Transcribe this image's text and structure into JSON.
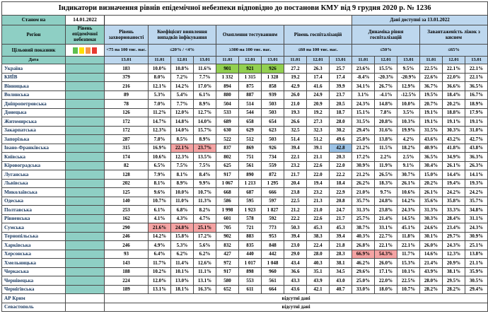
{
  "title": "Індикатори визначення рівнів епідемічної небезпеки відповідно до постанови КМУ від 9 грудня 2020 р. № 1236",
  "status": {
    "as_of_label": "Станом на",
    "as_of_date": "14.01.2022",
    "available_label": "Дані доступні за 13.01.2022"
  },
  "header": {
    "region": "Регіон",
    "epid_level": "Рівень епідемічної небезпеки",
    "target_label": "Цільовий показник",
    "date_label": "Дата",
    "morb_date": "13.01",
    "dates": [
      "11.01",
      "12.01",
      "13.01"
    ],
    "groups": [
      {
        "label": "Рівень захворюваності",
        "threshold": "<75 на 100 тис. нас."
      },
      {
        "label": "Коефіцієнт виявлення випадків інфікування",
        "threshold": "≤20% / <4%"
      },
      {
        "label": "Охоплення тестуванням",
        "threshold": "≥300 на 100 тис. нас."
      },
      {
        "label": "Рівень госпіталізацій",
        "threshold": "≤60 на 100 тис. нас."
      },
      {
        "label": "Динаміка рівня госпіталізацій",
        "threshold": "≤50%"
      },
      {
        "label": "Завантаженість ліжок з киснем",
        "threshold": "≤65%"
      }
    ],
    "target_colors": [
      "#5fbf50",
      "#ffdf00",
      "#f79646",
      "#e83a30"
    ]
  },
  "colors": {
    "header_teal": "#8ecfc4",
    "header_blue": "#bdd7ee",
    "highlight_green": "#92d050",
    "highlight_red": "#f4a3a3",
    "highlight_blue": "#9dc3e6"
  },
  "no_data_text": "відсутні дані",
  "rows": [
    {
      "region": "Україна",
      "morb": "183",
      "coef": [
        "10.0%",
        "10.8%",
        "11.6%"
      ],
      "test": [
        "901",
        "921",
        "926"
      ],
      "hosp": [
        "27.2",
        "26.3",
        "25.7"
      ],
      "dyn": [
        "23.6%",
        "15.5%",
        "9.5%"
      ],
      "beds": [
        "22.5%",
        "22.1%",
        "22.1%"
      ],
      "hl": {
        "test": [
          "green",
          "green",
          "green"
        ]
      }
    },
    {
      "region": "КИЇВ",
      "morb": "379",
      "coef": [
        "8.0%",
        "7.2%",
        "7.7%"
      ],
      "test": [
        "1 332",
        "1 315",
        "1 328"
      ],
      "hosp": [
        "19.2",
        "17.4",
        "17.4"
      ],
      "dyn": [
        "-8.4%",
        "-20.3%",
        "-20.9%"
      ],
      "beds": [
        "22.6%",
        "22.0%",
        "22.1%"
      ]
    },
    {
      "region": "Вінницька",
      "morb": "216",
      "coef": [
        "12.1%",
        "14.2%",
        "17.0%"
      ],
      "test": [
        "894",
        "875",
        "858"
      ],
      "hosp": [
        "42.9",
        "41.6",
        "39.9"
      ],
      "dyn": [
        "34.1%",
        "26.7%",
        "12.9%"
      ],
      "beds": [
        "36.7%",
        "36.6%",
        "36.5%"
      ]
    },
    {
      "region": "Волинська",
      "morb": "89",
      "coef": [
        "5.3%",
        "5.4%",
        "6.1%"
      ],
      "test": [
        "880",
        "887",
        "939"
      ],
      "hosp": [
        "26.0",
        "24.9",
        "23.7"
      ],
      "dyn": [
        "3.1%",
        "-4.1%",
        "-12.5%"
      ],
      "beds": [
        "19.5%",
        "18.4%",
        "16.7%"
      ]
    },
    {
      "region": "Дніпропетровська",
      "morb": "78",
      "coef": [
        "7.0%",
        "7.7%",
        "8.9%"
      ],
      "test": [
        "504",
        "514",
        "503"
      ],
      "hosp": [
        "21.0",
        "20.9",
        "20.5"
      ],
      "dyn": [
        "24.3%",
        "14.8%",
        "10.0%"
      ],
      "beds": [
        "20.7%",
        "20.2%",
        "18.9%"
      ]
    },
    {
      "region": "Донецька",
      "morb": "126",
      "coef": [
        "11.2%",
        "12.0%",
        "12.7%"
      ],
      "test": [
        "533",
        "544",
        "503"
      ],
      "hosp": [
        "19.3",
        "19.2",
        "18.7"
      ],
      "dyn": [
        "15.1%",
        "7.8%",
        "3.5%"
      ],
      "beds": [
        "19.1%",
        "18.8%",
        "17.9%"
      ]
    },
    {
      "region": "Житомирська",
      "morb": "172",
      "coef": [
        "14.7%",
        "14.8%",
        "14.0%"
      ],
      "test": [
        "689",
        "658",
        "654"
      ],
      "hosp": [
        "26.6",
        "27.3",
        "28.0"
      ],
      "dyn": [
        "31.5%",
        "20.8%",
        "10.3%"
      ],
      "beds": [
        "19.1%",
        "19.1%",
        "19.1%"
      ]
    },
    {
      "region": "Закарпатська",
      "morb": "172",
      "coef": [
        "12.3%",
        "14.0%",
        "15.7%"
      ],
      "test": [
        "630",
        "629",
        "623"
      ],
      "hosp": [
        "32.5",
        "32.3",
        "30.2"
      ],
      "dyn": [
        "29.4%",
        "31.6%",
        "19.9%"
      ],
      "beds": [
        "31.5%",
        "30.3%",
        "31.0%"
      ]
    },
    {
      "region": "Запорізька",
      "morb": "287",
      "coef": [
        "7.8%",
        "8.5%",
        "8.9%"
      ],
      "test": [
        "522",
        "512",
        "503"
      ],
      "hosp": [
        "51.4",
        "51.2",
        "49.6"
      ],
      "dyn": [
        "25.0%",
        "13.8%",
        "4.2%"
      ],
      "beds": [
        "43.6%",
        "43.2%",
        "42.7%"
      ]
    },
    {
      "region": "Івано-Франківська",
      "morb": "315",
      "coef": [
        "16.9%",
        "22.1%",
        "23.7%"
      ],
      "test": [
        "837",
        "869",
        "926"
      ],
      "hosp": [
        "39.4",
        "39.1",
        "42.8"
      ],
      "dyn": [
        "21.2%",
        "11.5%",
        "18.2%"
      ],
      "beds": [
        "40.9%",
        "41.8%",
        "43.8%"
      ],
      "hl": {
        "coef": [
          null,
          "red",
          "red"
        ],
        "hosp": [
          null,
          null,
          "blue"
        ]
      }
    },
    {
      "region": "Київська",
      "morb": "174",
      "coef": [
        "10.6%",
        "12.3%",
        "13.5%"
      ],
      "test": [
        "802",
        "751",
        "734"
      ],
      "hosp": [
        "22.1",
        "21.1",
        "20.3"
      ],
      "dyn": [
        "17.2%",
        "2.2%",
        "2.5%"
      ],
      "beds": [
        "36.5%",
        "34.9%",
        "36.3%"
      ]
    },
    {
      "region": "Кіровоградська",
      "morb": "82",
      "coef": [
        "6.5%",
        "7.5%",
        "7.5%"
      ],
      "test": [
        "625",
        "561",
        "559"
      ],
      "hosp": [
        "23.2",
        "22.6",
        "22.0"
      ],
      "dyn": [
        "30.9%",
        "11.9%",
        "9.1%"
      ],
      "beds": [
        "30.4%",
        "26.1%",
        "26.3%"
      ]
    },
    {
      "region": "Луганська",
      "morb": "128",
      "coef": [
        "7.9%",
        "8.1%",
        "8.4%"
      ],
      "test": [
        "917",
        "890",
        "872"
      ],
      "hosp": [
        "21.7",
        "22.0",
        "22.2"
      ],
      "dyn": [
        "21.2%",
        "26.5%",
        "30.7%"
      ],
      "beds": [
        "15.0%",
        "14.4%",
        "14.1%"
      ]
    },
    {
      "region": "Львівська",
      "morb": "202",
      "coef": [
        "8.1%",
        "8.9%",
        "9.9%"
      ],
      "test": [
        "1 067",
        "1 213",
        "1 295"
      ],
      "hosp": [
        "20.4",
        "19.4",
        "18.4"
      ],
      "dyn": [
        "26.2%",
        "18.3%",
        "26.1%"
      ],
      "beds": [
        "20.2%",
        "19.4%",
        "19.3%"
      ]
    },
    {
      "region": "Миколаївська",
      "morb": "125",
      "coef": [
        "9.6%",
        "10.0%",
        "10.7%"
      ],
      "test": [
        "668",
        "687",
        "666"
      ],
      "hosp": [
        "23.8",
        "23.2",
        "22.9"
      ],
      "dyn": [
        "21.0%",
        "9.7%",
        "10.6%"
      ],
      "beds": [
        "26.1%",
        "24.2%",
        "24.2%"
      ]
    },
    {
      "region": "Одеська",
      "morb": "140",
      "coef": [
        "10.7%",
        "11.0%",
        "11.3%"
      ],
      "test": [
        "586",
        "595",
        "597"
      ],
      "hosp": [
        "22.5",
        "21.3",
        "20.8"
      ],
      "dyn": [
        "35.7%",
        "24.8%",
        "14.2%"
      ],
      "beds": [
        "35.6%",
        "35.8%",
        "35.7%"
      ]
    },
    {
      "region": "Полтавська",
      "morb": "253",
      "coef": [
        "6.1%",
        "6.8%",
        "8.2%"
      ],
      "test": [
        "1 998",
        "1 923",
        "1 827"
      ],
      "hosp": [
        "21.2",
        "21.0",
        "24.7"
      ],
      "dyn": [
        "31.3%",
        "23.8%",
        "24.3%"
      ],
      "beds": [
        "31.3%",
        "33.3%",
        "34.8%"
      ]
    },
    {
      "region": "Рівненська",
      "morb": "162",
      "coef": [
        "4.1%",
        "4.3%",
        "4.7%"
      ],
      "test": [
        "601",
        "578",
        "592"
      ],
      "hosp": [
        "22.2",
        "22.6",
        "21.7"
      ],
      "dyn": [
        "25.7%",
        "21.4%",
        "14.5%"
      ],
      "beds": [
        "30.3%",
        "28.4%",
        "31.1%"
      ]
    },
    {
      "region": "Сумська",
      "morb": "290",
      "coef": [
        "21.6%",
        "24.8%",
        "25.1%"
      ],
      "test": [
        "705",
        "721",
        "773"
      ],
      "hosp": [
        "50.3",
        "45.3",
        "45.3"
      ],
      "dyn": [
        "38.7%",
        "33.1%",
        "45.1%"
      ],
      "beds": [
        "24.6%",
        "23.4%",
        "24.3%"
      ],
      "hl": {
        "coef": [
          "red",
          "red",
          "red"
        ]
      }
    },
    {
      "region": "Тернопільська",
      "morb": "246",
      "coef": [
        "14.2%",
        "15.8%",
        "17.2%"
      ],
      "test": [
        "902",
        "883",
        "953"
      ],
      "hosp": [
        "39.4",
        "38.3",
        "39.4"
      ],
      "dyn": [
        "40.3%",
        "22.7%",
        "11.8%"
      ],
      "beds": [
        "30.1%",
        "29.7%",
        "30.9%"
      ]
    },
    {
      "region": "Харківська",
      "morb": "246",
      "coef": [
        "4.9%",
        "5.3%",
        "5.6%"
      ],
      "test": [
        "832",
        "835",
        "848"
      ],
      "hosp": [
        "23.0",
        "22.4",
        "21.8"
      ],
      "dyn": [
        "26.8%",
        "22.1%",
        "22.1%"
      ],
      "beds": [
        "26.0%",
        "24.3%",
        "25.1%"
      ]
    },
    {
      "region": "Херсонська",
      "morb": "93",
      "coef": [
        "6.4%",
        "6.2%",
        "6.2%"
      ],
      "test": [
        "427",
        "440",
        "442"
      ],
      "hosp": [
        "29.0",
        "28.0",
        "28.3"
      ],
      "dyn": [
        "66.9%",
        "54.3%",
        "11.7%"
      ],
      "beds": [
        "14.6%",
        "12.3%",
        "13.8%"
      ],
      "hl": {
        "dyn": [
          "red",
          "red",
          null
        ]
      }
    },
    {
      "region": "Хмельницька",
      "morb": "143",
      "coef": [
        "11.7%",
        "11.4%",
        "12.6%"
      ],
      "test": [
        "972",
        "1 017",
        "1 048"
      ],
      "hosp": [
        "43.4",
        "40.3",
        "38.1"
      ],
      "dyn": [
        "46.2%",
        "26.0%",
        "15.3%"
      ],
      "beds": [
        "21.4%",
        "20.9%",
        "21.1%"
      ]
    },
    {
      "region": "Черкаська",
      "morb": "188",
      "coef": [
        "10.2%",
        "10.1%",
        "11.1%"
      ],
      "test": [
        "917",
        "898",
        "960"
      ],
      "hosp": [
        "36.6",
        "35.1",
        "34.5"
      ],
      "dyn": [
        "29.6%",
        "17.1%",
        "10.1%"
      ],
      "beds": [
        "43.9%",
        "38.1%",
        "35.9%"
      ]
    },
    {
      "region": "Чернівецька",
      "morb": "224",
      "coef": [
        "12.0%",
        "13.0%",
        "13.1%"
      ],
      "test": [
        "580",
        "553",
        "561"
      ],
      "hosp": [
        "43.3",
        "43.9",
        "43.0"
      ],
      "dyn": [
        "25.0%",
        "22.0%",
        "22.5%"
      ],
      "beds": [
        "28.0%",
        "29.5%",
        "30.5%"
      ]
    },
    {
      "region": "Чернігівська",
      "morb": "189",
      "coef": [
        "13.1%",
        "18.1%",
        "16.3%"
      ],
      "test": [
        "652",
        "611",
        "664"
      ],
      "hosp": [
        "43.6",
        "42.1",
        "40.7"
      ],
      "dyn": [
        "33.0%",
        "18.0%",
        "10.7%"
      ],
      "beds": [
        "28.2%",
        "28.2%",
        "29.4%"
      ]
    }
  ],
  "no_data_rows": [
    {
      "region": "АР Крим"
    },
    {
      "region": "Севастополь"
    }
  ]
}
